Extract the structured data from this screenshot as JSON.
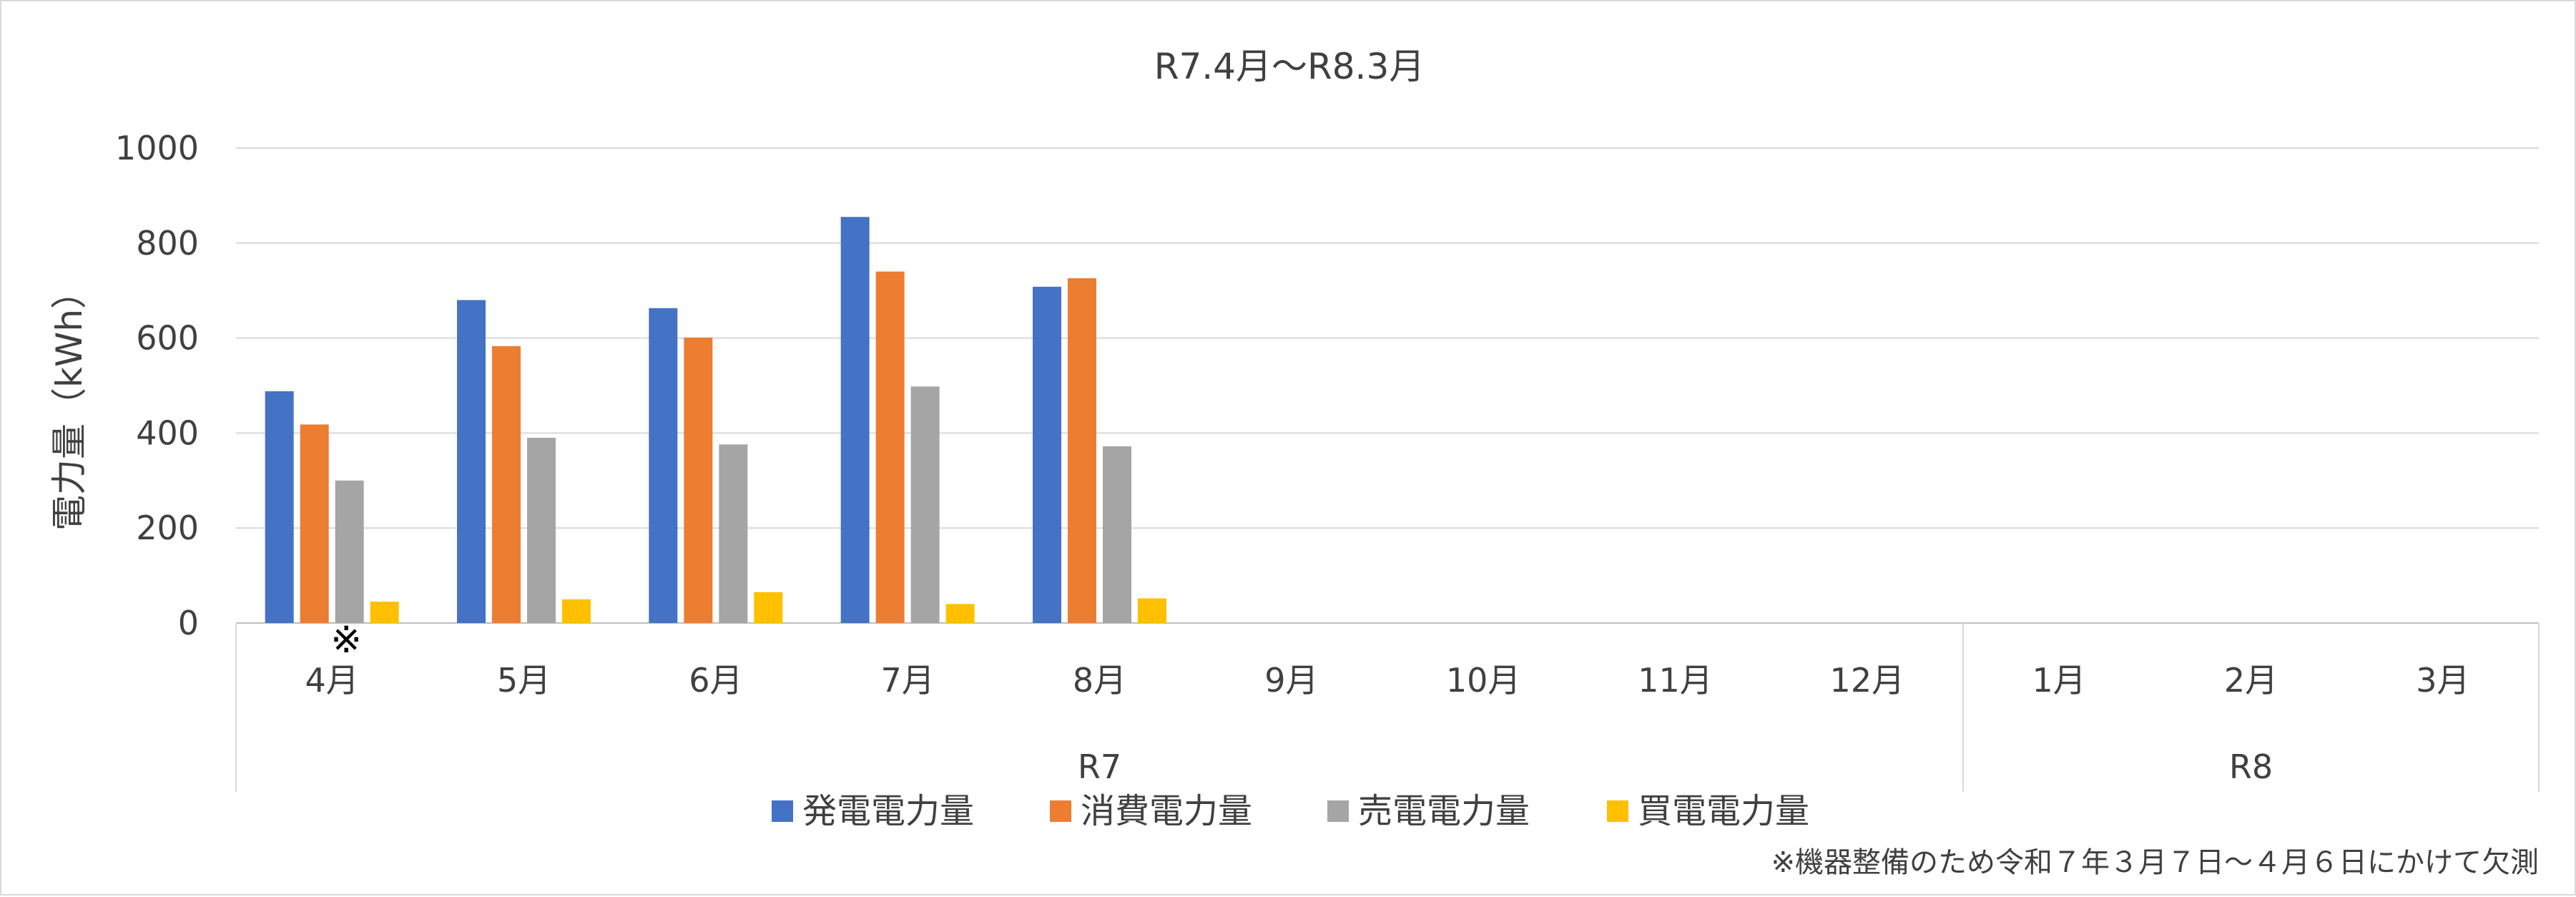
{
  "chart_data": {
    "type": "bar",
    "title": "R7.4月～R8.3月",
    "ylabel": "電力量（kWh）",
    "xlabel": "",
    "ylim": [
      0,
      1000
    ],
    "yticks": [
      "0",
      "200",
      "400",
      "600",
      "800",
      "1000"
    ],
    "grid": true,
    "legend_position": "bottom",
    "categories": [
      "4月",
      "5月",
      "6月",
      "7月",
      "8月",
      "9月",
      "10月",
      "11月",
      "12月",
      "1月",
      "2月",
      "3月"
    ],
    "groups": [
      {
        "label": "R7",
        "span": 9
      },
      {
        "label": "R8",
        "span": 3
      }
    ],
    "series": [
      {
        "name": "発電電力量",
        "color": "#4472C4",
        "values": [
          488,
          680,
          663,
          855,
          708,
          null,
          null,
          null,
          null,
          null,
          null,
          null
        ]
      },
      {
        "name": "消費電力量",
        "color": "#ED7D31",
        "values": [
          418,
          583,
          601,
          740,
          726,
          null,
          null,
          null,
          null,
          null,
          null,
          null
        ]
      },
      {
        "name": "売電電力量",
        "color": "#A5A5A5",
        "values": [
          300,
          390,
          376,
          498,
          372,
          null,
          null,
          null,
          null,
          null,
          null,
          null
        ]
      },
      {
        "name": "買電電力量",
        "color": "#FFC000",
        "values": [
          45,
          50,
          65,
          40,
          52,
          null,
          null,
          null,
          null,
          null,
          null,
          null
        ]
      }
    ],
    "annotations": [
      {
        "text": "※",
        "category": "4月"
      }
    ],
    "footnote": "※機器整備のため令和７年３月７日～４月６日にかけて欠測"
  }
}
